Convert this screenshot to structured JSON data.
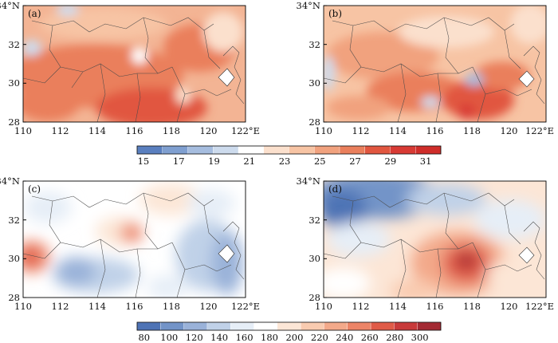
{
  "panels": [
    {
      "id": "a",
      "label": "(a)",
      "field": "temp"
    },
    {
      "id": "b",
      "label": "(b)",
      "field": "temp"
    },
    {
      "id": "c",
      "label": "(c)",
      "field": "precip"
    },
    {
      "id": "d",
      "label": "(d)",
      "field": "precip"
    }
  ],
  "axes": {
    "lon_ticks": [
      "110",
      "112",
      "114",
      "116",
      "118",
      "120",
      "122°E"
    ],
    "lat_ticks": [
      "34°N",
      "32",
      "30",
      "28"
    ],
    "lon_range": [
      110,
      122
    ],
    "lat_range": [
      28,
      34
    ]
  },
  "colorbars": {
    "top": {
      "ticks": [
        "15",
        "17",
        "19",
        "21",
        "23",
        "25",
        "27",
        "29",
        "31"
      ],
      "colors": [
        "#5a7fbf",
        "#7f9fd0",
        "#a6bddf",
        "#cddbed",
        "#ffffff",
        "#fbe0cd",
        "#f7c4a4",
        "#f1a27e",
        "#ea7f5c",
        "#e1563f",
        "#d83a34",
        "#cf2d2a"
      ]
    },
    "bottom": {
      "ticks": [
        "80",
        "100",
        "120",
        "140",
        "160",
        "180",
        "200",
        "220",
        "240",
        "260",
        "280",
        "300"
      ],
      "colors": [
        "#4e73b5",
        "#7394c8",
        "#9ab2d9",
        "#c0d1e8",
        "#e6eef7",
        "#ffffff",
        "#fce6d6",
        "#f9cbb0",
        "#f3a98a",
        "#ec8467",
        "#e05b48",
        "#c83a3a",
        "#a32a33"
      ]
    }
  }
}
